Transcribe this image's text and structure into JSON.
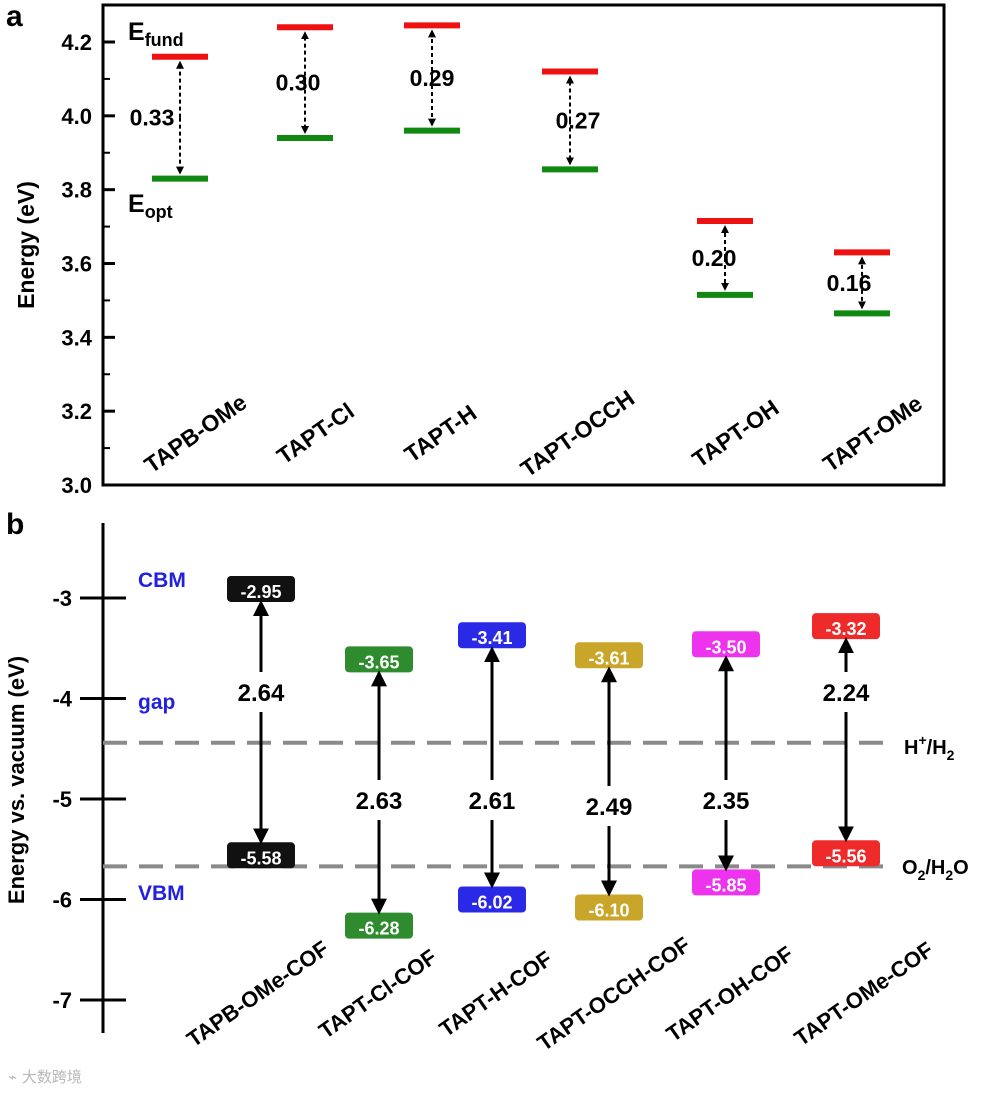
{
  "chart_data": [
    {
      "panel": "a",
      "type": "energy-level",
      "ylabel": "Energy (eV)",
      "ylim": [
        3.0,
        4.3
      ],
      "yticks": [
        "3.0",
        "3.2",
        "3.4",
        "3.6",
        "3.8",
        "4.0",
        "4.2"
      ],
      "ytick_values": [
        3.0,
        3.2,
        3.4,
        3.6,
        3.8,
        4.0,
        4.2
      ],
      "legend": {
        "fund_main": "E",
        "fund_sub": "fund",
        "opt_main": "E",
        "opt_sub": "opt"
      },
      "colors": {
        "fund": "#ee1111",
        "opt": "#118811"
      },
      "categories": [
        "TAPB-OMe",
        "TAPT-Cl",
        "TAPT-H",
        "TAPT-OCCH",
        "TAPT-OH",
        "TAPT-OMe"
      ],
      "series": [
        {
          "name": "E_fund",
          "values": [
            4.16,
            4.24,
            4.245,
            4.12,
            3.715,
            3.63
          ]
        },
        {
          "name": "E_opt",
          "values": [
            3.83,
            3.94,
            3.96,
            3.855,
            3.515,
            3.465
          ]
        }
      ],
      "gap_labels": [
        "0.33",
        "0.30",
        "0.29",
        "0.27",
        "0.20",
        "0.16"
      ]
    },
    {
      "panel": "b",
      "type": "band-alignment",
      "ylabel": "Energy vs. vacuum (eV)",
      "ylim": [
        -7.3,
        -2.5
      ],
      "yticks": [
        "-3",
        "-4",
        "-5",
        "-6",
        "-7"
      ],
      "ytick_values": [
        -3,
        -4,
        -5,
        -6,
        -7
      ],
      "side_labels": {
        "cbm": "CBM",
        "gap": "gap",
        "vbm": "VBM"
      },
      "side_label_color": "#2222dd",
      "reference_lines": [
        {
          "value": -4.44,
          "main": "H",
          "sup": "+",
          "slash": "/H",
          "sub": "2",
          "tail": ""
        },
        {
          "value": -5.67,
          "main": "O",
          "sup": "",
          "slash": "",
          "sub": "2",
          "tail": "/H2O"
        }
      ],
      "categories": [
        "TAPB-OMe-COF",
        "TAPT-Cl-COF",
        "TAPT-H-COF",
        "TAPT-OCCH-COF",
        "TAPT-OH-COF",
        "TAPT-OMe-COF"
      ],
      "cbm": [
        -2.95,
        -3.65,
        -3.41,
        -3.61,
        -3.5,
        -3.32
      ],
      "vbm": [
        -5.58,
        -6.28,
        -6.02,
        -6.1,
        -5.85,
        -5.56
      ],
      "cbm_labels": [
        "-2.95",
        "-3.65",
        "-3.41",
        "-3.61",
        "-3.50",
        "-3.32"
      ],
      "vbm_labels": [
        "-5.58",
        "-6.28",
        "-6.02",
        "-6.10",
        "-5.85",
        "-5.56"
      ],
      "gaps": [
        "2.64",
        "2.63",
        "2.61",
        "2.49",
        "2.35",
        "2.24"
      ],
      "colors": [
        "#111111",
        "#2e8b2e",
        "#2a2ae6",
        "#c9a62a",
        "#ee33ee",
        "#ee2a2a"
      ]
    }
  ],
  "watermark": "大数跨境"
}
